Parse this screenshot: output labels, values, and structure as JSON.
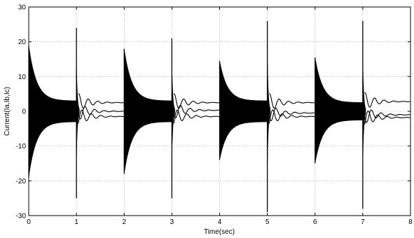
{
  "chart_data": {
    "type": "line",
    "title": "",
    "xlabel": "Time(sec)",
    "ylabel": "Current(Ia,Ib,Ic)",
    "xlim": [
      0,
      8
    ],
    "ylim": [
      -30,
      30
    ],
    "x_ticks": [
      0,
      1,
      2,
      3,
      4,
      5,
      6,
      7,
      8
    ],
    "y_ticks": [
      -30,
      -20,
      -10,
      0,
      10,
      20,
      30
    ],
    "x_tick_labels": [
      "0",
      "1",
      "2",
      "3",
      "4",
      "5",
      "6",
      "7",
      "8"
    ],
    "y_tick_labels": [
      "-30",
      "-20",
      "-10",
      "0",
      "10",
      "20",
      "30"
    ],
    "grid": true,
    "legend": "none",
    "line_color": "#000000",
    "segments": [
      {
        "start": 0,
        "end": 1,
        "peak_pos": 19,
        "peak_neg": -19,
        "steady_amp": 3,
        "settled": false
      },
      {
        "start": 1,
        "end": 2,
        "peak_pos": 24,
        "peak_neg": -25,
        "steady_values": [
          2.5,
          0,
          -1.5
        ],
        "settled": true
      },
      {
        "start": 2,
        "end": 3,
        "peak_pos": 18,
        "peak_neg": -18,
        "steady_amp": 3,
        "settled": false
      },
      {
        "start": 3,
        "end": 4,
        "peak_pos": 21,
        "peak_neg": -25,
        "steady_values": [
          2.5,
          0.3,
          -1.5
        ],
        "settled": true
      },
      {
        "start": 4,
        "end": 5,
        "peak_pos": 14.5,
        "peak_neg": -14,
        "steady_amp": 3,
        "settled": false
      },
      {
        "start": 5,
        "end": 6,
        "peak_pos": 26,
        "peak_neg": -29,
        "steady_values": [
          2.5,
          -0.5,
          -1.5
        ],
        "settled": true
      },
      {
        "start": 6,
        "end": 7,
        "peak_pos": 15.5,
        "peak_neg": -15,
        "steady_amp": 2.5,
        "settled": false
      },
      {
        "start": 7,
        "end": 8,
        "peak_pos": 26,
        "peak_neg": -28,
        "steady_values": [
          2.8,
          -1,
          -1.8
        ],
        "settled": true
      }
    ]
  }
}
